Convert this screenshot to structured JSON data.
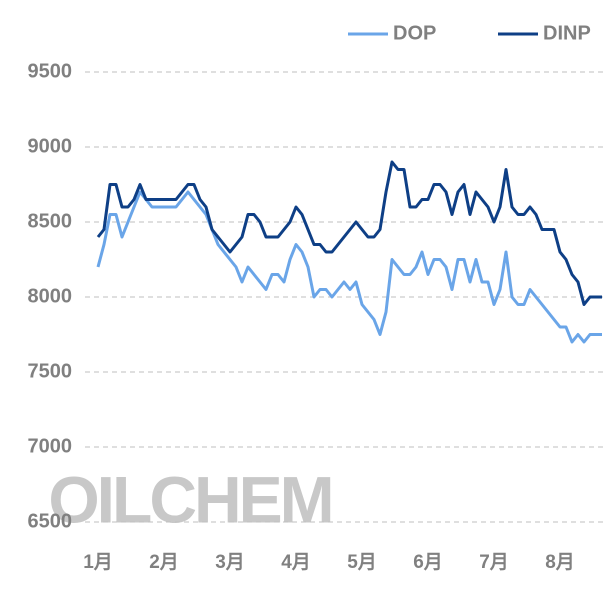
{
  "chart_data": {
    "type": "line",
    "watermark": "OILCHEM",
    "categories": [
      "1月",
      null,
      null,
      null,
      null,
      null,
      null,
      null,
      null,
      null,
      null,
      "2月",
      null,
      null,
      null,
      null,
      null,
      null,
      null,
      null,
      null,
      null,
      "3月",
      null,
      null,
      null,
      null,
      null,
      null,
      null,
      null,
      null,
      null,
      "4月",
      null,
      null,
      null,
      null,
      null,
      null,
      null,
      null,
      null,
      null,
      "5月",
      null,
      null,
      null,
      null,
      null,
      null,
      null,
      null,
      null,
      null,
      "6月",
      null,
      null,
      null,
      null,
      null,
      null,
      null,
      null,
      null,
      null,
      "7月",
      null,
      null,
      null,
      null,
      null,
      null,
      null,
      null,
      null,
      null,
      "8月",
      null,
      null,
      null,
      null,
      null,
      null,
      null
    ],
    "series": [
      {
        "name": "DOP",
        "color": "#6aa5e8",
        "values": [
          8200,
          8350,
          8550,
          8550,
          8400,
          8500,
          8600,
          8700,
          8650,
          8600,
          8600,
          8600,
          8600,
          8600,
          8650,
          8700,
          8650,
          8600,
          8550,
          8450,
          8350,
          8300,
          8250,
          8200,
          8100,
          8200,
          8150,
          8100,
          8050,
          8150,
          8150,
          8100,
          8250,
          8350,
          8300,
          8200,
          8000,
          8050,
          8050,
          8000,
          8050,
          8100,
          8050,
          8100,
          7950,
          7900,
          7850,
          7750,
          7900,
          8250,
          8200,
          8150,
          8150,
          8200,
          8300,
          8150,
          8250,
          8250,
          8200,
          8050,
          8250,
          8250,
          8100,
          8250,
          8100,
          8100,
          7950,
          8050,
          8300,
          8000,
          7950,
          7950,
          8050,
          8000,
          7950,
          7900,
          7850,
          7800,
          7800,
          7700,
          7750,
          7700,
          7750,
          7750,
          7750
        ]
      },
      {
        "name": "DINP",
        "color": "#0e3f86",
        "values": [
          8400,
          8450,
          8750,
          8750,
          8600,
          8600,
          8650,
          8750,
          8650,
          8650,
          8650,
          8650,
          8650,
          8650,
          8700,
          8750,
          8750,
          8650,
          8600,
          8450,
          8400,
          8350,
          8300,
          8350,
          8400,
          8550,
          8550,
          8500,
          8400,
          8400,
          8400,
          8450,
          8500,
          8600,
          8550,
          8450,
          8350,
          8350,
          8300,
          8300,
          8350,
          8400,
          8450,
          8500,
          8450,
          8400,
          8400,
          8450,
          8700,
          8900,
          8850,
          8850,
          8600,
          8600,
          8650,
          8650,
          8750,
          8750,
          8700,
          8550,
          8700,
          8750,
          8550,
          8700,
          8650,
          8600,
          8500,
          8600,
          8850,
          8600,
          8550,
          8550,
          8600,
          8550,
          8450,
          8450,
          8450,
          8300,
          8250,
          8150,
          8100,
          7950,
          8000,
          8000,
          8000
        ]
      }
    ],
    "ylim": [
      6500,
      9500
    ],
    "yticks": [
      6500,
      7000,
      7500,
      8000,
      8500,
      9000,
      9500
    ],
    "grid": true,
    "legend": "top-right"
  }
}
